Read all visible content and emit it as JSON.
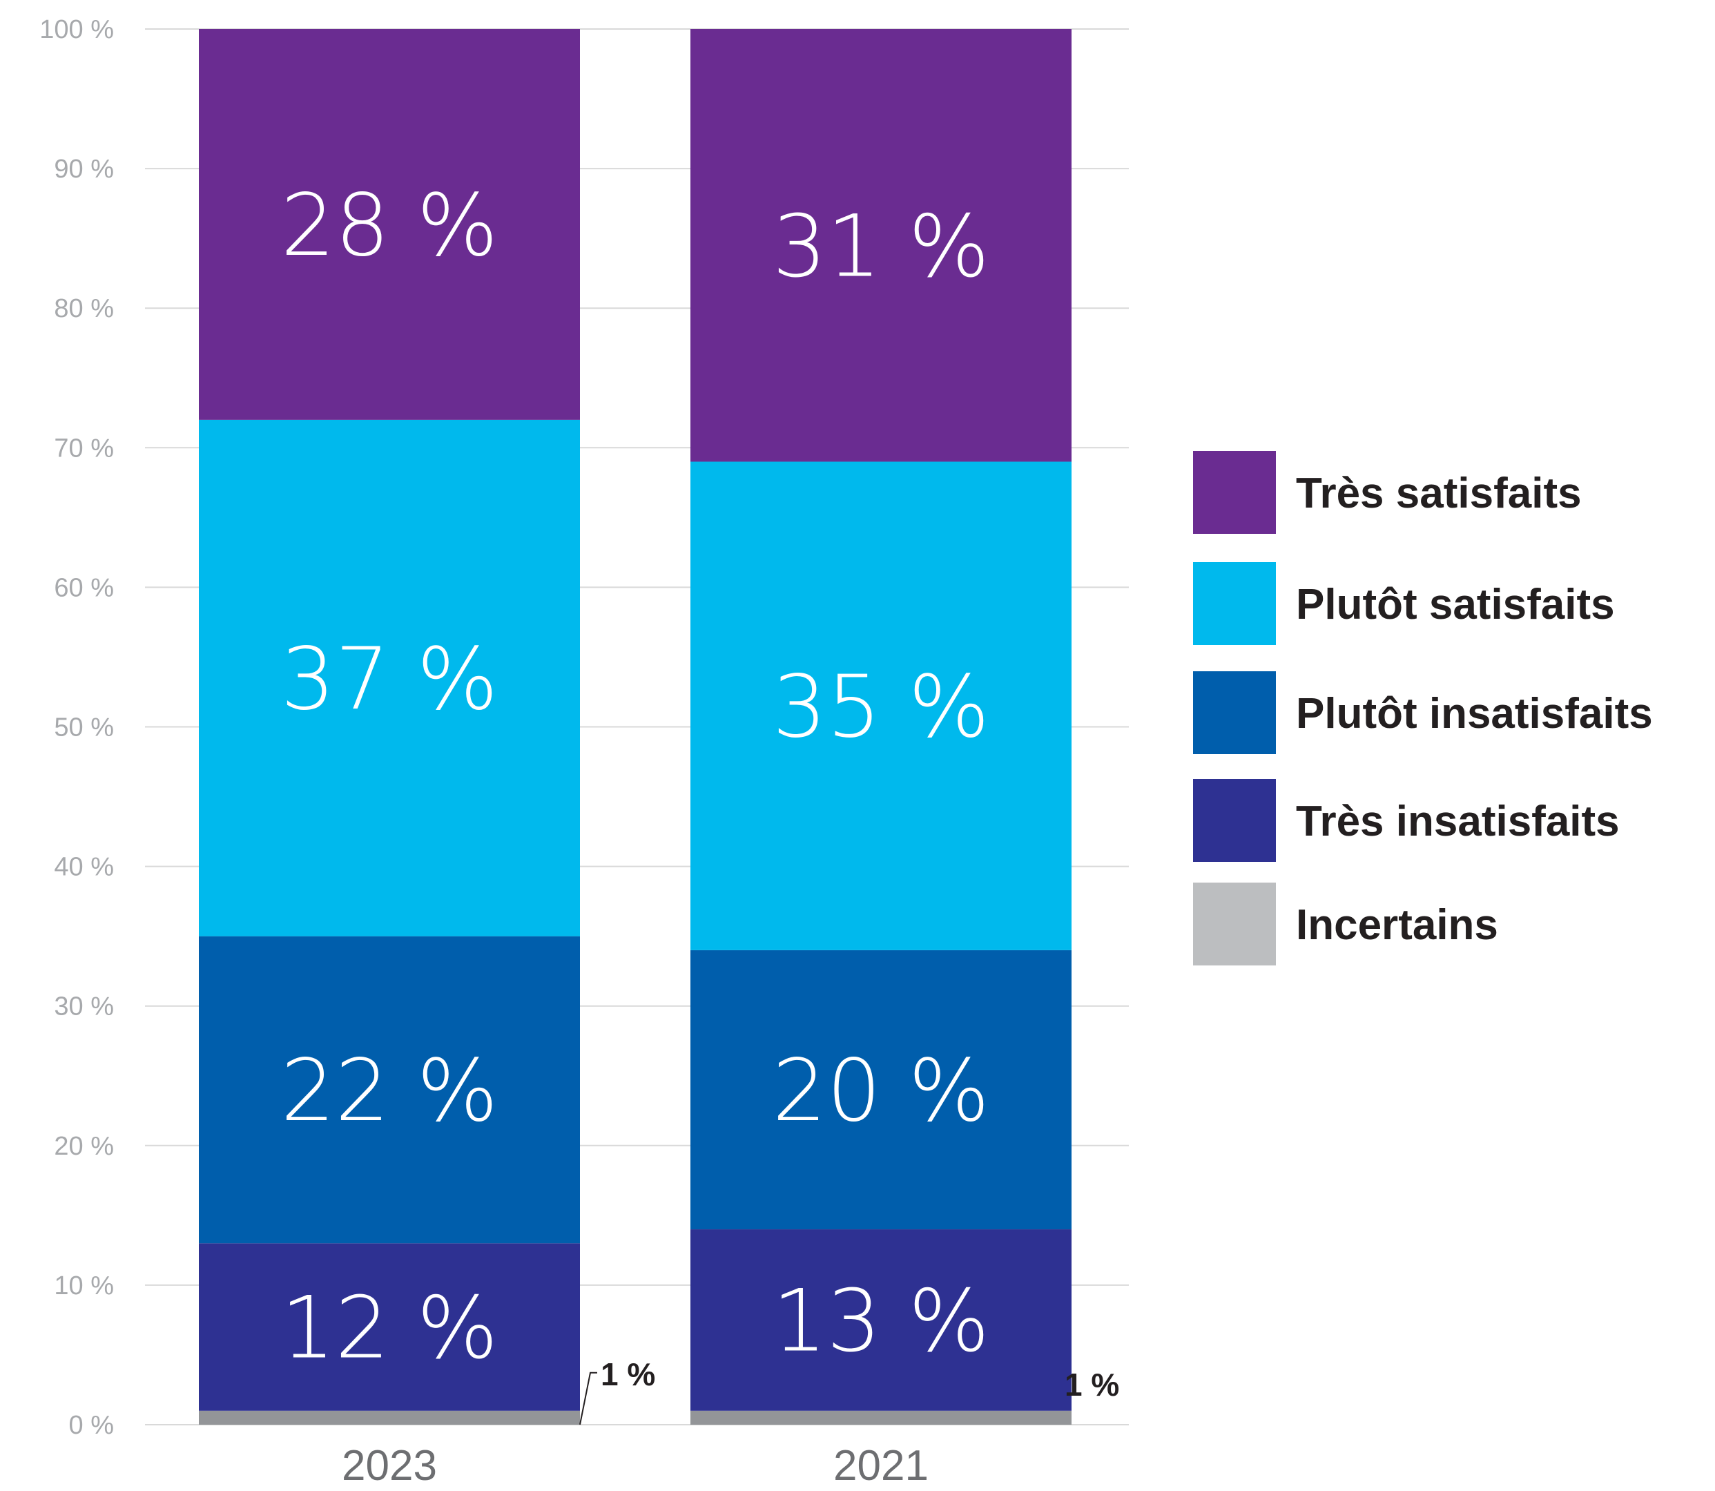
{
  "chart_data": {
    "type": "bar",
    "stacked": true,
    "categories": [
      "2023",
      "2021"
    ],
    "series": [
      {
        "name": "Incertains",
        "values": [
          1,
          1
        ],
        "labels": [
          "1 %",
          "1 %"
        ],
        "color": "#939598"
      },
      {
        "name": "Très insatisfaits",
        "values": [
          12,
          13
        ],
        "labels": [
          "12 %",
          "13 %"
        ],
        "color": "#2e3192"
      },
      {
        "name": "Plutôt insatisfaits",
        "values": [
          22,
          20
        ],
        "labels": [
          "22 %",
          "20 %"
        ],
        "color": "#005eac"
      },
      {
        "name": "Plutôt satisfaits",
        "values": [
          37,
          35
        ],
        "labels": [
          "37 %",
          "35 %"
        ],
        "color": "#00b9ed"
      },
      {
        "name": "Très satisfaits",
        "values": [
          28,
          31
        ],
        "labels": [
          "28 %",
          "31 %"
        ],
        "color": "#6a2c91"
      }
    ],
    "legend": {
      "position": "right",
      "items": [
        {
          "name": "Très satisfaits",
          "color": "#6a2c91"
        },
        {
          "name": "Plutôt satisfaits",
          "color": "#00b9ed"
        },
        {
          "name": "Plutôt insatisfaits",
          "color": "#005eac"
        },
        {
          "name": "Très insatisfaits",
          "color": "#2e3192"
        },
        {
          "name": "Incertains",
          "color": "#bcbec0"
        }
      ]
    },
    "y_ticks": [
      "0 %",
      "10 %",
      "20 %",
      "30 %",
      "40 %",
      "50 %",
      "60 %",
      "70 %",
      "80 %",
      "90 %",
      "100 %"
    ],
    "ylim": [
      0,
      100
    ],
    "grid": true,
    "title": "",
    "xlabel": "",
    "ylabel": ""
  }
}
